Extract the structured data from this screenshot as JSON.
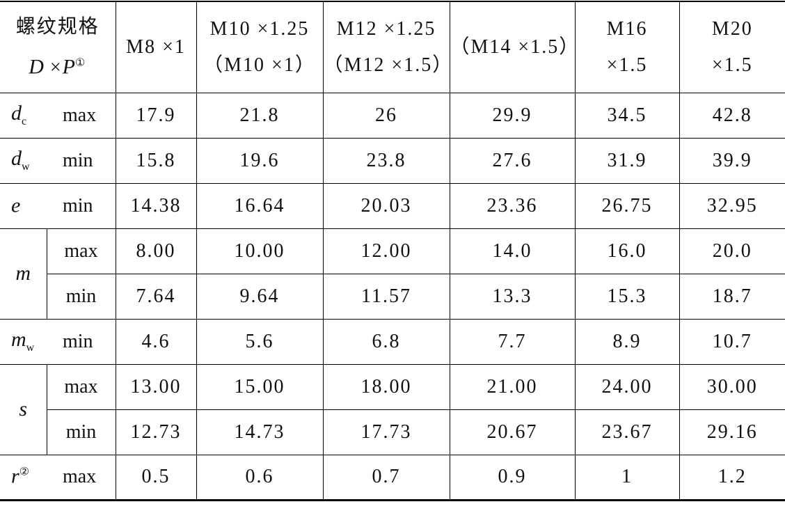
{
  "header": {
    "spec_label": "螺纹规格",
    "spec_symbol": {
      "d": "D",
      "times": "×",
      "p": "P",
      "note": "①"
    },
    "columns": [
      [
        "M8 ×1"
      ],
      [
        "M10 ×1.25",
        "（M10 ×1）"
      ],
      [
        "M12 ×1.25",
        "（M12 ×1.5）"
      ],
      [
        "（M14 ×1.5）"
      ],
      [
        "M16",
        "×1.5"
      ],
      [
        "M20",
        "×1.5"
      ]
    ]
  },
  "groups": [
    {
      "symbol": "d",
      "subscript": "c",
      "rows": [
        {
          "qualifier": "max",
          "values": [
            "17.9",
            "21.8",
            "26",
            "29.9",
            "34.5",
            "42.8"
          ]
        }
      ]
    },
    {
      "symbol": "d",
      "subscript": "w",
      "rows": [
        {
          "qualifier": "min",
          "values": [
            "15.8",
            "19.6",
            "23.8",
            "27.6",
            "31.9",
            "39.9"
          ]
        }
      ]
    },
    {
      "symbol": "e",
      "rows": [
        {
          "qualifier": "min",
          "values": [
            "14.38",
            "16.64",
            "20.03",
            "23.36",
            "26.75",
            "32.95"
          ]
        }
      ]
    },
    {
      "symbol": "m",
      "rows": [
        {
          "qualifier": "max",
          "values": [
            "8.00",
            "10.00",
            "12.00",
            "14.0",
            "16.0",
            "20.0"
          ]
        },
        {
          "qualifier": "min",
          "values": [
            "7.64",
            "9.64",
            "11.57",
            "13.3",
            "15.3",
            "18.7"
          ]
        }
      ]
    },
    {
      "symbol": "m",
      "subscript": "w",
      "rows": [
        {
          "qualifier": "min",
          "values": [
            "4.6",
            "5.6",
            "6.8",
            "7.7",
            "8.9",
            "10.7"
          ]
        }
      ]
    },
    {
      "symbol": "s",
      "rows": [
        {
          "qualifier": "max",
          "values": [
            "13.00",
            "15.00",
            "18.00",
            "21.00",
            "24.00",
            "30.00"
          ]
        },
        {
          "qualifier": "min",
          "values": [
            "12.73",
            "14.73",
            "17.73",
            "20.67",
            "23.67",
            "29.16"
          ]
        }
      ]
    },
    {
      "symbol": "r",
      "superscript": "②",
      "rows": [
        {
          "qualifier": "max",
          "values": [
            "0.5",
            "0.6",
            "0.7",
            "0.9",
            "1",
            "1.2"
          ]
        }
      ]
    }
  ]
}
